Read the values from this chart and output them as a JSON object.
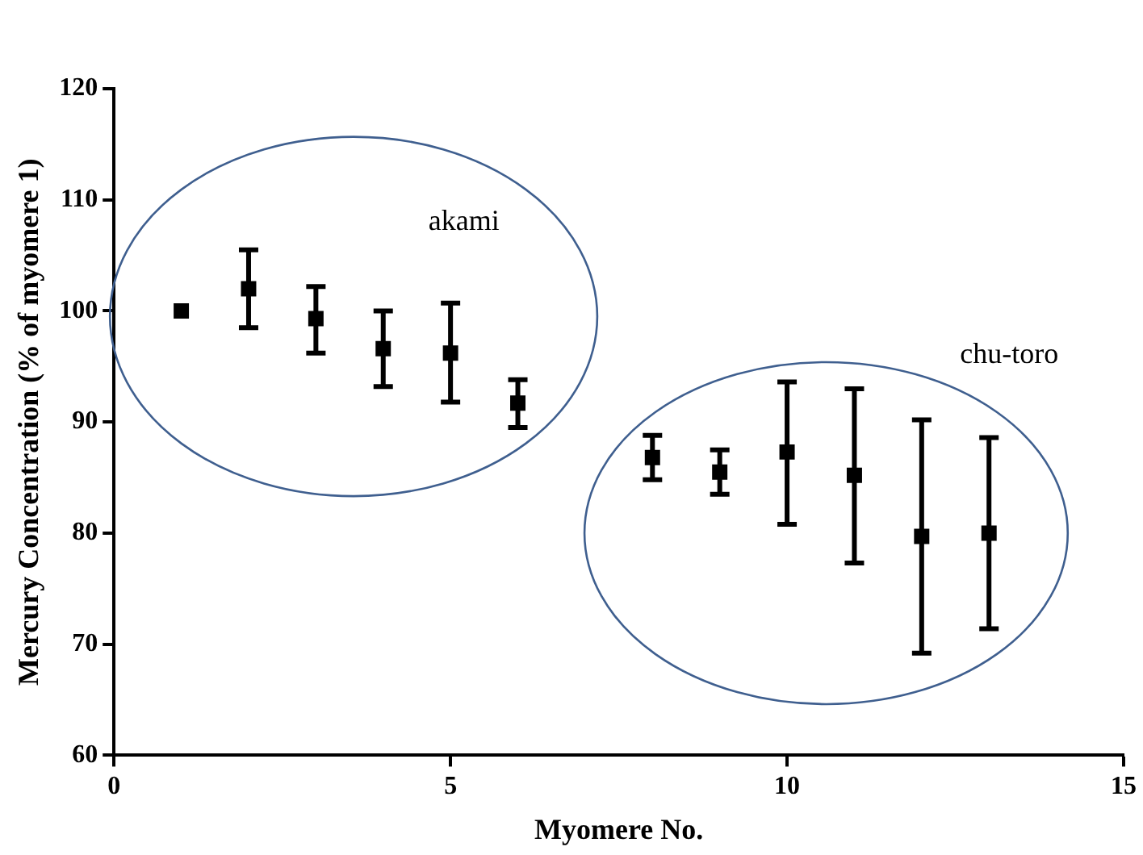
{
  "chart_data": {
    "type": "scatter",
    "xlabel": "Myomere No.",
    "ylabel": "Mercury Concentration (% of myomere 1)",
    "x": [
      1,
      2,
      3,
      4,
      5,
      6,
      8,
      9,
      10,
      11,
      12,
      13
    ],
    "values": [
      100,
      102,
      99.3,
      96.6,
      96.2,
      91.7,
      86.8,
      85.5,
      87.3,
      85.2,
      79.7,
      80.0
    ],
    "errors": [
      null,
      [
        98.5,
        105.5
      ],
      [
        96.2,
        102.2
      ],
      [
        93.2,
        100
      ],
      [
        91.8,
        100.7
      ],
      [
        89.5,
        93.8
      ],
      [
        84.8,
        88.8
      ],
      [
        83.5,
        87.5
      ],
      [
        80.8,
        93.6
      ],
      [
        77.3,
        93.0
      ],
      [
        69.2,
        90.2
      ],
      [
        71.4,
        88.6
      ]
    ],
    "color": "#000000",
    "marker": "square",
    "xlim": [
      0,
      15
    ],
    "xticks": [
      0,
      5,
      10,
      15
    ],
    "ylim": [
      60,
      120
    ],
    "yticks": [
      60,
      70,
      80,
      90,
      100,
      110,
      120
    ],
    "grid": false,
    "legend": false,
    "annotations": [
      "akami",
      "chu-toro"
    ]
  }
}
